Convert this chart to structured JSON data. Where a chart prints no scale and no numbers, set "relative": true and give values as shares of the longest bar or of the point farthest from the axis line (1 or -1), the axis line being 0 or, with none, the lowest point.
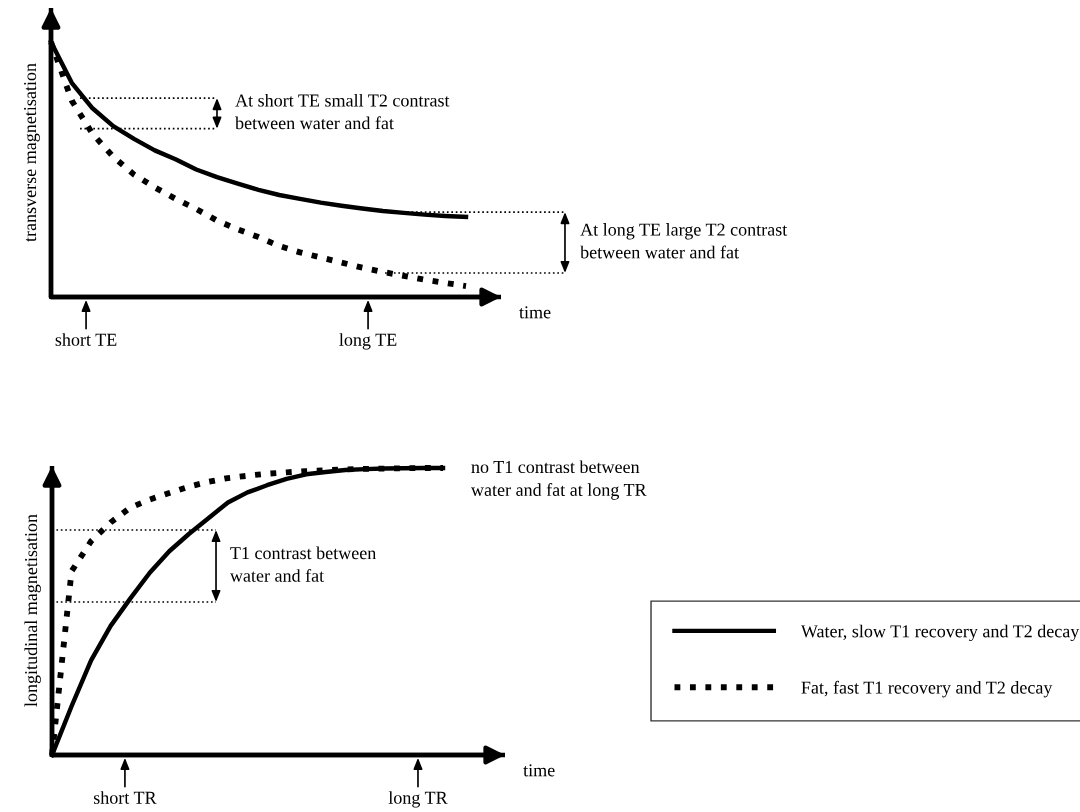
{
  "chart_data": [
    {
      "type": "line",
      "relative": true,
      "xlabel": "time",
      "ylabel": "transverse magnetisation",
      "legend": false,
      "categories": [
        null,
        null,
        null,
        null,
        null,
        null,
        null,
        null,
        null,
        null,
        null,
        null,
        null,
        null,
        null,
        null,
        null,
        null,
        null,
        null,
        null
      ],
      "series": [
        {
          "color": "#000000",
          "line_style": "solid",
          "values": [
            1.0,
            0.84,
            0.74,
            0.67,
            0.62,
            0.575,
            0.54,
            0.5,
            0.47,
            0.445,
            0.42,
            0.4,
            0.385,
            0.37,
            0.358,
            0.347,
            0.337,
            0.33,
            0.323,
            0.318,
            0.314
          ]
        },
        {
          "color": "#000000",
          "line_style": "dotted",
          "values": [
            1.0,
            0.77,
            0.64,
            0.55,
            0.48,
            0.43,
            0.385,
            0.345,
            0.3,
            0.265,
            0.235,
            0.2,
            0.175,
            0.155,
            0.135,
            0.115,
            0.098,
            0.083,
            0.068,
            0.055,
            0.043
          ]
        }
      ],
      "ref_lines": [
        {
          "axis": "y",
          "value": 0.78,
          "line_style": "dotted",
          "color": "#000000"
        },
        {
          "axis": "y",
          "value": 0.66,
          "line_style": "dotted",
          "color": "#000000"
        },
        {
          "axis": "y",
          "value": 0.333,
          "line_style": "dotted",
          "color": "#000000"
        },
        {
          "axis": "y",
          "value": 0.094,
          "line_style": "dotted",
          "color": "#000000"
        }
      ],
      "annotations": [
        "short TE",
        "long TE",
        "At short TE small T2 contrast\nbetween water and fat",
        "At long TE large T2 contrast\nbetween water and fat"
      ]
    },
    {
      "type": "line",
      "relative": true,
      "xlabel": "time",
      "ylabel": "longitudinal magnetisation",
      "legend": "right",
      "categories": [
        null,
        null,
        null,
        null,
        null,
        null,
        null,
        null,
        null,
        null,
        null,
        null,
        null,
        null,
        null,
        null,
        null,
        null,
        null,
        null,
        null
      ],
      "series": [
        {
          "name": "Water, slow T1 recovery and T2 decay",
          "color": "#000000",
          "line_style": "solid",
          "values": [
            0.0,
            0.17,
            0.33,
            0.45,
            0.545,
            0.635,
            0.71,
            0.77,
            0.825,
            0.88,
            0.915,
            0.94,
            0.962,
            0.978,
            0.986,
            0.993,
            0.996,
            0.998,
            0.999,
            1.0,
            1.0
          ]
        },
        {
          "name": "Fat, fast T1 recovery and T2 decay",
          "color": "#000000",
          "line_style": "dotted",
          "values": [
            0.0,
            0.64,
            0.745,
            0.81,
            0.862,
            0.89,
            0.913,
            0.935,
            0.952,
            0.965,
            0.973,
            0.98,
            0.985,
            0.989,
            0.992,
            0.995,
            0.997,
            0.998,
            0.999,
            1.0,
            1.0
          ]
        }
      ],
      "ref_lines": [
        {
          "axis": "y",
          "value": 0.784,
          "line_style": "dotted",
          "color": "#000000"
        },
        {
          "axis": "y",
          "value": 0.533,
          "line_style": "dotted",
          "color": "#000000"
        }
      ],
      "annotations": [
        "short TR",
        "long TR",
        "no T1 contrast between\nwater and fat at long TR",
        "T1 contrast between\nwater and fat"
      ]
    }
  ]
}
